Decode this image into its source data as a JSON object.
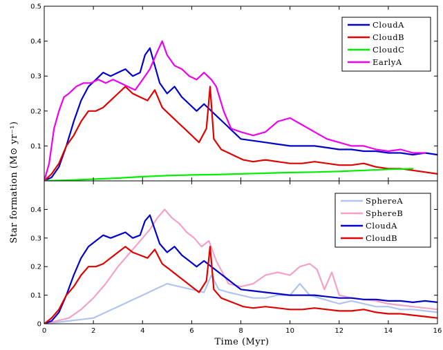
{
  "chart_data": [
    {
      "type": "line",
      "panel": "top",
      "xlim": [
        0,
        16
      ],
      "ylim": [
        0,
        0.5
      ],
      "xticks": [
        0,
        2,
        4,
        6,
        8,
        10,
        12,
        14,
        16
      ],
      "yticks": [
        0.1,
        0.2,
        0.3,
        0.4,
        0.5
      ],
      "ytick_labels": [
        "0.1",
        "0.2",
        "0.3",
        "0.4",
        "0.5"
      ],
      "legend_position": "top-right",
      "series": [
        {
          "name": "CloudA",
          "color": "#0000cc",
          "x": [
            0,
            0.3,
            0.6,
            0.9,
            1.2,
            1.5,
            1.8,
            2.1,
            2.4,
            2.7,
            3.0,
            3.3,
            3.6,
            3.9,
            4.1,
            4.3,
            4.5,
            4.7,
            5.0,
            5.3,
            5.6,
            5.9,
            6.2,
            6.5,
            6.8,
            7.1,
            7.4,
            7.7,
            8.0,
            8.5,
            9.0,
            9.5,
            10.0,
            10.5,
            11.0,
            11.5,
            12.0,
            12.5,
            13.0,
            13.5,
            14.0,
            14.5,
            15.0,
            15.5,
            16.0
          ],
          "y": [
            0,
            0.01,
            0.04,
            0.1,
            0.17,
            0.23,
            0.27,
            0.29,
            0.31,
            0.3,
            0.31,
            0.32,
            0.3,
            0.31,
            0.36,
            0.38,
            0.33,
            0.28,
            0.25,
            0.27,
            0.24,
            0.22,
            0.2,
            0.22,
            0.2,
            0.18,
            0.16,
            0.14,
            0.12,
            0.115,
            0.11,
            0.105,
            0.1,
            0.1,
            0.1,
            0.095,
            0.09,
            0.09,
            0.085,
            0.085,
            0.08,
            0.08,
            0.075,
            0.08,
            0.075
          ]
        },
        {
          "name": "CloudB",
          "color": "#e00000",
          "x": [
            0,
            0.3,
            0.6,
            0.9,
            1.2,
            1.5,
            1.8,
            2.1,
            2.4,
            2.7,
            3.0,
            3.3,
            3.6,
            3.9,
            4.2,
            4.5,
            4.8,
            5.1,
            5.4,
            5.7,
            6.0,
            6.3,
            6.6,
            6.75,
            6.9,
            7.2,
            7.5,
            7.8,
            8.1,
            8.5,
            9.0,
            9.5,
            10.0,
            10.5,
            11.0,
            11.5,
            12.0,
            12.5,
            13.0,
            13.5,
            14.0,
            14.5,
            15.0,
            15.5,
            16.0
          ],
          "y": [
            0,
            0.02,
            0.05,
            0.1,
            0.13,
            0.17,
            0.2,
            0.2,
            0.21,
            0.23,
            0.25,
            0.27,
            0.25,
            0.24,
            0.23,
            0.26,
            0.21,
            0.19,
            0.17,
            0.15,
            0.13,
            0.11,
            0.15,
            0.27,
            0.12,
            0.09,
            0.08,
            0.07,
            0.06,
            0.055,
            0.06,
            0.055,
            0.05,
            0.05,
            0.055,
            0.05,
            0.045,
            0.045,
            0.05,
            0.04,
            0.035,
            0.035,
            0.03,
            0.025,
            0.02
          ]
        },
        {
          "name": "CloudC",
          "color": "#00ee00",
          "x": [
            0,
            1,
            2,
            3,
            4,
            5,
            6,
            7,
            8,
            9,
            10,
            11,
            12,
            13,
            14,
            15
          ],
          "y": [
            0,
            0.002,
            0.005,
            0.008,
            0.012,
            0.015,
            0.017,
            0.018,
            0.02,
            0.022,
            0.024,
            0.025,
            0.027,
            0.03,
            0.033,
            0.035
          ]
        },
        {
          "name": "EarlyA",
          "color": "#ee00ee",
          "x": [
            0,
            0.2,
            0.4,
            0.6,
            0.8,
            1.0,
            1.3,
            1.6,
            1.9,
            2.2,
            2.5,
            2.8,
            3.1,
            3.4,
            3.7,
            4.0,
            4.3,
            4.6,
            4.8,
            5.0,
            5.3,
            5.6,
            5.9,
            6.2,
            6.5,
            6.8,
            7.0,
            7.3,
            7.6,
            8.0,
            8.5,
            9.0,
            9.5,
            10.0,
            10.5,
            11.0,
            11.5,
            12.0,
            12.5,
            13.0,
            13.5,
            14.0,
            14.5,
            15.0,
            15.5
          ],
          "y": [
            0,
            0.05,
            0.15,
            0.2,
            0.24,
            0.25,
            0.27,
            0.28,
            0.28,
            0.29,
            0.28,
            0.29,
            0.28,
            0.27,
            0.26,
            0.29,
            0.32,
            0.37,
            0.4,
            0.36,
            0.33,
            0.32,
            0.3,
            0.29,
            0.31,
            0.29,
            0.27,
            0.2,
            0.15,
            0.14,
            0.13,
            0.14,
            0.17,
            0.18,
            0.16,
            0.14,
            0.12,
            0.11,
            0.1,
            0.1,
            0.09,
            0.085,
            0.09,
            0.08,
            0.08
          ]
        }
      ]
    },
    {
      "type": "line",
      "panel": "bottom",
      "xlim": [
        0,
        16
      ],
      "ylim": [
        0,
        0.5
      ],
      "xticks": [
        0,
        2,
        4,
        6,
        8,
        10,
        12,
        14,
        16
      ],
      "xtick_labels": [
        "0",
        "2",
        "4",
        "6",
        "8",
        "10",
        "12",
        "14",
        "16"
      ],
      "yticks": [
        0,
        0.1,
        0.2,
        0.3,
        0.4
      ],
      "ytick_labels": [
        "0",
        "0.1",
        "0.2",
        "0.3",
        "0.4"
      ],
      "legend_position": "top-right",
      "series": [
        {
          "name": "SphereA",
          "color": "#b0c4f0",
          "x": [
            0,
            0.5,
            1.0,
            1.5,
            2.0,
            2.5,
            3.0,
            3.5,
            4.0,
            4.5,
            5.0,
            5.5,
            6.0,
            6.5,
            6.8,
            7.1,
            7.5,
            8.0,
            8.5,
            9.0,
            9.5,
            10.0,
            10.4,
            10.8,
            11.2,
            11.6,
            12.0,
            12.5,
            13.0,
            13.5,
            14.0,
            14.5,
            15.0,
            15.5,
            16.0
          ],
          "y": [
            0,
            0.005,
            0.01,
            0.015,
            0.02,
            0.04,
            0.06,
            0.08,
            0.1,
            0.12,
            0.14,
            0.13,
            0.12,
            0.11,
            0.17,
            0.12,
            0.11,
            0.1,
            0.09,
            0.09,
            0.1,
            0.1,
            0.14,
            0.1,
            0.09,
            0.08,
            0.07,
            0.08,
            0.07,
            0.06,
            0.06,
            0.05,
            0.05,
            0.045,
            0.04
          ]
        },
        {
          "name": "SphereB",
          "color": "#f4a0c8",
          "x": [
            0,
            0.5,
            1.0,
            1.5,
            2.0,
            2.5,
            3.0,
            3.5,
            4.0,
            4.3,
            4.6,
            4.9,
            5.2,
            5.5,
            5.8,
            6.1,
            6.4,
            6.7,
            7.0,
            7.5,
            8.0,
            8.5,
            9.0,
            9.5,
            10.0,
            10.4,
            10.8,
            11.1,
            11.4,
            11.7,
            12.0,
            12.5,
            13.0,
            13.5,
            14.0,
            14.5,
            15.0,
            15.5,
            16.0
          ],
          "y": [
            0,
            0.01,
            0.02,
            0.05,
            0.09,
            0.14,
            0.2,
            0.25,
            0.3,
            0.33,
            0.37,
            0.4,
            0.37,
            0.35,
            0.32,
            0.3,
            0.27,
            0.29,
            0.22,
            0.14,
            0.13,
            0.14,
            0.17,
            0.18,
            0.17,
            0.2,
            0.21,
            0.19,
            0.12,
            0.18,
            0.1,
            0.09,
            0.085,
            0.08,
            0.07,
            0.065,
            0.06,
            0.055,
            0.05
          ]
        },
        {
          "name": "CloudA",
          "color": "#0000cc",
          "x": [
            0,
            0.3,
            0.6,
            0.9,
            1.2,
            1.5,
            1.8,
            2.1,
            2.4,
            2.7,
            3.0,
            3.3,
            3.6,
            3.9,
            4.1,
            4.3,
            4.5,
            4.7,
            5.0,
            5.3,
            5.6,
            5.9,
            6.2,
            6.5,
            6.8,
            7.1,
            7.4,
            7.7,
            8.0,
            8.5,
            9.0,
            9.5,
            10.0,
            10.5,
            11.0,
            11.5,
            12.0,
            12.5,
            13.0,
            13.5,
            14.0,
            14.5,
            15.0,
            15.5,
            16.0
          ],
          "y": [
            0,
            0.01,
            0.04,
            0.1,
            0.17,
            0.23,
            0.27,
            0.29,
            0.31,
            0.3,
            0.31,
            0.32,
            0.3,
            0.31,
            0.36,
            0.38,
            0.33,
            0.28,
            0.25,
            0.27,
            0.24,
            0.22,
            0.2,
            0.22,
            0.2,
            0.18,
            0.16,
            0.14,
            0.12,
            0.115,
            0.11,
            0.105,
            0.1,
            0.1,
            0.1,
            0.095,
            0.09,
            0.09,
            0.085,
            0.085,
            0.08,
            0.08,
            0.075,
            0.08,
            0.075
          ]
        },
        {
          "name": "CloudB",
          "color": "#e00000",
          "x": [
            0,
            0.3,
            0.6,
            0.9,
            1.2,
            1.5,
            1.8,
            2.1,
            2.4,
            2.7,
            3.0,
            3.3,
            3.6,
            3.9,
            4.2,
            4.5,
            4.8,
            5.1,
            5.4,
            5.7,
            6.0,
            6.3,
            6.6,
            6.75,
            6.9,
            7.2,
            7.5,
            7.8,
            8.1,
            8.5,
            9.0,
            9.5,
            10.0,
            10.5,
            11.0,
            11.5,
            12.0,
            12.5,
            13.0,
            13.5,
            14.0,
            14.5,
            15.0,
            15.5,
            16.0
          ],
          "y": [
            0,
            0.02,
            0.05,
            0.1,
            0.13,
            0.17,
            0.2,
            0.2,
            0.21,
            0.23,
            0.25,
            0.27,
            0.25,
            0.24,
            0.23,
            0.26,
            0.21,
            0.19,
            0.17,
            0.15,
            0.13,
            0.11,
            0.15,
            0.27,
            0.12,
            0.09,
            0.08,
            0.07,
            0.06,
            0.055,
            0.06,
            0.055,
            0.05,
            0.05,
            0.055,
            0.05,
            0.045,
            0.045,
            0.05,
            0.04,
            0.035,
            0.035,
            0.03,
            0.025,
            0.02
          ]
        }
      ]
    }
  ],
  "labels": {
    "xlabel": "Time (Myr)",
    "ylabel": "Star formation (M⊙ yr⁻¹)"
  }
}
